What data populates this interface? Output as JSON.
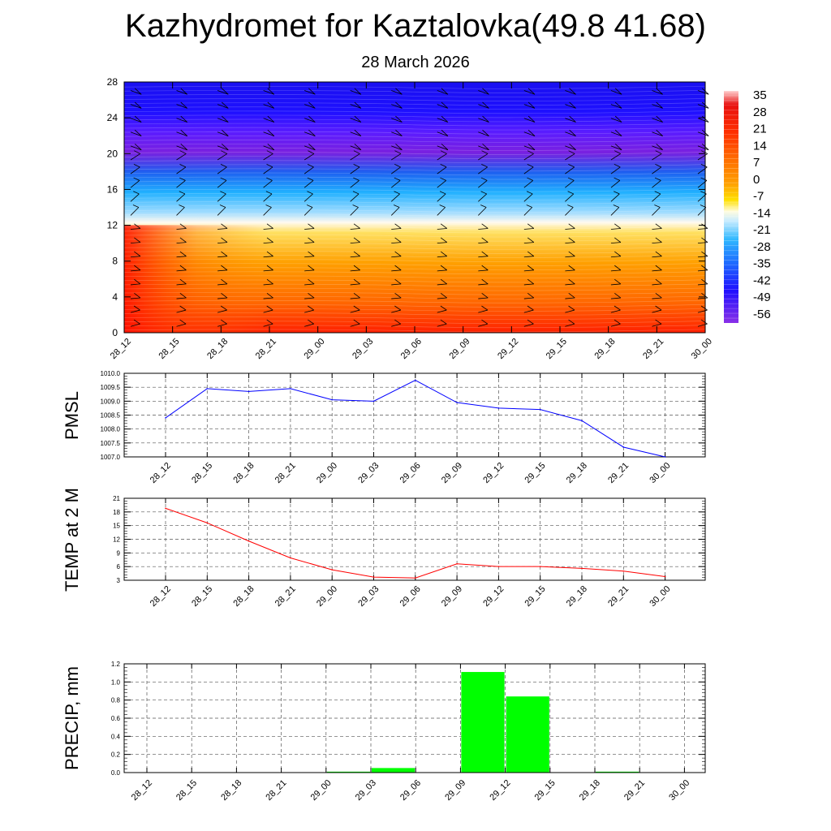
{
  "header": {
    "title": "Kazhydromet for Kaztalovka(49.8 41.68)",
    "date": "28 March 2026"
  },
  "colors": {
    "pmsl_line": "#0000ff",
    "temp_line": "#ff0000",
    "precip_bar": "#00ff00",
    "grid": "#555555"
  },
  "chart_data": [
    {
      "type": "heatmap",
      "title": "Temperature / wind cross-section",
      "x_categories": [
        "28_12",
        "28_15",
        "28_18",
        "28_21",
        "29_00",
        "29_03",
        "29_06",
        "29_09",
        "29_12",
        "29_15",
        "29_18",
        "29_21",
        "30_00"
      ],
      "y_ticks": [
        0,
        4,
        8,
        12,
        16,
        20,
        24,
        28
      ],
      "ylim": [
        0,
        28
      ],
      "colorbar_labels": [
        "35",
        "28",
        "21",
        "14",
        "7",
        "0",
        "-7",
        "-14",
        "-21",
        "-28",
        "-35",
        "-42",
        "-49",
        "-56"
      ],
      "wind_barbs": true
    },
    {
      "type": "line",
      "ylabel": "PMSL",
      "categories": [
        "28_12",
        "28_15",
        "28_18",
        "28_21",
        "29_00",
        "29_03",
        "29_06",
        "29_09",
        "29_12",
        "29_15",
        "29_18",
        "29_21",
        "30_00"
      ],
      "values": [
        1008.4,
        1009.45,
        1009.35,
        1009.45,
        1009.05,
        1009.0,
        1009.75,
        1008.95,
        1008.75,
        1008.7,
        1008.3,
        1007.35,
        1007.0
      ],
      "ylim": [
        1007.0,
        1010.0
      ],
      "y_tick_labels": [
        "1007.0",
        "1007.5",
        "1008.0",
        "1008.5",
        "1009.0",
        "1009.5",
        "1010.0"
      ]
    },
    {
      "type": "line",
      "ylabel": "TEMP at 2 M",
      "categories": [
        "28_12",
        "28_15",
        "28_18",
        "28_21",
        "29_00",
        "29_03",
        "29_06",
        "29_09",
        "29_12",
        "29_15",
        "29_18",
        "29_21",
        "30_00"
      ],
      "values": [
        18.8,
        15.6,
        11.6,
        7.9,
        5.3,
        3.7,
        3.5,
        6.6,
        6.0,
        6.0,
        5.6,
        5.0,
        3.8
      ],
      "ylim": [
        3,
        21
      ],
      "y_tick_labels": [
        "3",
        "6",
        "9",
        "12",
        "15",
        "18",
        "21"
      ]
    },
    {
      "type": "bar",
      "ylabel": "PRECIP, mm",
      "categories": [
        "28_12",
        "28_15",
        "28_18",
        "28_21",
        "29_00",
        "29_03",
        "29_06",
        "29_09",
        "29_12",
        "29_15",
        "29_18",
        "29_21",
        "30_00"
      ],
      "values": [
        0,
        0,
        0,
        0,
        0,
        0.01,
        0.05,
        0,
        1.11,
        0.84,
        0,
        0.01,
        0
      ],
      "ylim": [
        0,
        1.2
      ],
      "y_tick_labels": [
        "0.0",
        "0.2",
        "0.4",
        "0.6",
        "0.8",
        "1.0",
        "1.2"
      ]
    }
  ]
}
